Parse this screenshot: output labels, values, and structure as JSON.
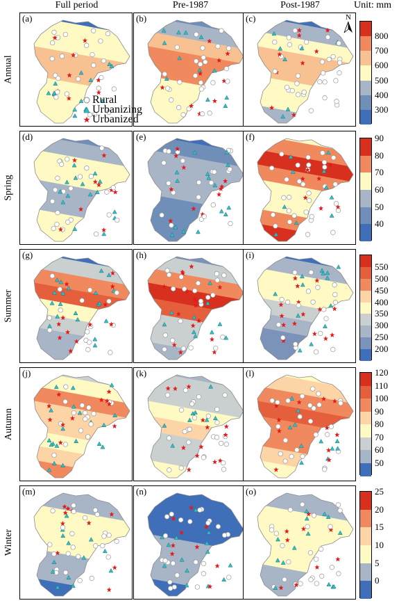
{
  "columns": [
    "Full period",
    "Pre-1987",
    "Post-1987"
  ],
  "unit_label": "Unit: mm",
  "rows": [
    "Annual",
    "Spring",
    "Summer",
    "Autumn",
    "Winter"
  ],
  "panel_letters": [
    "(a)",
    "(b)",
    "(c)",
    "(d)",
    "(e)",
    "(f)",
    "(g)",
    "(h)",
    "(i)",
    "(j)",
    "(k)",
    "(l)",
    "(m)",
    "(n)",
    "(o)"
  ],
  "legend": {
    "rural": "Rural",
    "urbanizing": "Urbanizing",
    "urbanized": "Urbanized"
  },
  "north_label": "N",
  "colorbars": [
    {
      "ticks": [
        "800",
        "700",
        "600",
        "500",
        "400",
        "300"
      ],
      "colors": [
        "#d7301f",
        "#f08a5e",
        "#f7c191",
        "#fffac4",
        "#a8b5c7",
        "#6f8fb8",
        "#3f6fb8"
      ]
    },
    {
      "ticks": [
        "90",
        "80",
        "70",
        "60",
        "50",
        "40"
      ],
      "colors": [
        "#d7301f",
        "#f08a5e",
        "#fffac4",
        "#a8b5c7",
        "#6f8fb8",
        "#3f6fb8"
      ]
    },
    {
      "ticks": [
        "550",
        "500",
        "450",
        "400",
        "350",
        "300",
        "250",
        "200"
      ],
      "colors": [
        "#d7301f",
        "#e65f3c",
        "#f08a5e",
        "#fcd4a5",
        "#fffac4",
        "#c9d0cf",
        "#a8b5c7",
        "#7b93b8",
        "#3f6fb8"
      ]
    },
    {
      "ticks": [
        "120",
        "110",
        "100",
        "90",
        "80",
        "70",
        "60",
        "50"
      ],
      "colors": [
        "#d7301f",
        "#e65f3c",
        "#f08a5e",
        "#fcd4a5",
        "#fffac4",
        "#c9d0cf",
        "#a8b5c7",
        "#3f6fb8"
      ]
    },
    {
      "ticks": [
        "25",
        "20",
        "15",
        "10",
        "5",
        "0"
      ],
      "colors": [
        "#d7301f",
        "#f08a5e",
        "#fcd4a5",
        "#fffac4",
        "#a8b5c7",
        "#3f6fb8"
      ]
    }
  ],
  "colors": {
    "rural_marker": "#ffffff",
    "urbanizing_marker": "#2fbfc7",
    "urbanized_marker": "#e21b1b"
  }
}
